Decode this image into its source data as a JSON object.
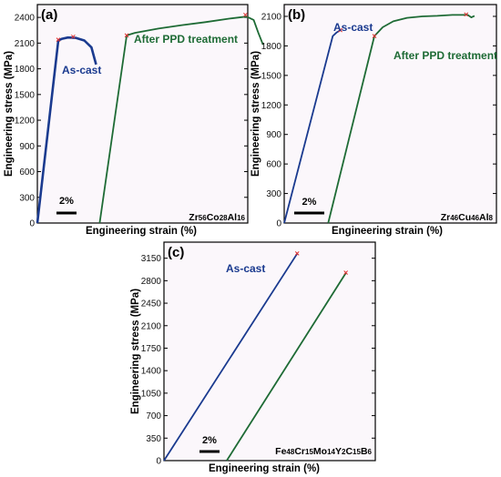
{
  "colors": {
    "blue": "#1a3a8f",
    "green": "#1e6b35",
    "frame": "#000000",
    "plot_bg": "#fbf7fb",
    "marker": "#e03030"
  },
  "chart_data": [
    {
      "panel": "(a)",
      "type": "line",
      "xlabel": "Engineering strain (%)",
      "ylabel": "Engineering stress (MPa)",
      "ylim": [
        0,
        2550
      ],
      "yticks": [
        "0",
        "300",
        "600",
        "900",
        "1200",
        "1500",
        "1800",
        "2100",
        "2400"
      ],
      "ytick_values": [
        0,
        300,
        600,
        900,
        1200,
        1500,
        1800,
        2100,
        2400
      ],
      "x_unit_percent": 2,
      "xlim": [
        0,
        17.9
      ],
      "scalebar_label": "2%",
      "composition": [
        "Zr",
        "56",
        "Co",
        "28",
        "Al",
        "16"
      ],
      "series": [
        {
          "name": "As-cast",
          "color": "#1a3a8f",
          "x": [
            0.0,
            1.78,
            2.1,
            2.6,
            3.3,
            4.0,
            4.6,
            5.0
          ],
          "y": [
            0,
            2130,
            2150,
            2165,
            2160,
            2130,
            2050,
            1850
          ],
          "markers": [
            [
              1.78,
              2140
            ],
            [
              3.05,
              2175
            ]
          ]
        },
        {
          "name": "After PPD treatment",
          "color": "#1e6b35",
          "x": [
            0.0,
            2.3,
            3.0,
            5.0,
            7.0,
            9.0,
            11.0,
            12.5,
            13.1,
            13.5,
            13.9
          ],
          "y": [
            0,
            2190,
            2220,
            2270,
            2310,
            2345,
            2385,
            2410,
            2370,
            2220,
            2080
          ],
          "offset": 5.3,
          "markers": [
            [
              2.3,
              2190
            ],
            [
              12.4,
              2430
            ]
          ]
        }
      ]
    },
    {
      "panel": "(b)",
      "type": "line",
      "xlabel": "Engineering strain (%)",
      "ylabel": "Engineering stress (MPa)",
      "ylim": [
        0,
        2220
      ],
      "yticks": [
        "0",
        "300",
        "600",
        "900",
        "1200",
        "1500",
        "1800",
        "2100"
      ],
      "ytick_values": [
        0,
        300,
        600,
        900,
        1200,
        1500,
        1800,
        2100
      ],
      "x_unit_percent": 2,
      "xlim": [
        0,
        14.0
      ],
      "scalebar_label": "2%",
      "composition": [
        "Zr",
        "46",
        "Cu",
        "46",
        "Al",
        "8"
      ],
      "series": [
        {
          "name": "As-cast",
          "color": "#1a3a8f",
          "x": [
            0.0,
            3.2,
            3.45,
            3.6,
            3.75
          ],
          "y": [
            0,
            1900,
            1935,
            1950,
            1965
          ],
          "markers": [
            [
              3.7,
              1960
            ]
          ]
        },
        {
          "name": "After PPD treatment",
          "color": "#1e6b35",
          "x": [
            0.0,
            3.05,
            3.6,
            4.3,
            5.2,
            6.2,
            7.2,
            8.2,
            9.2,
            9.45,
            9.65
          ],
          "y": [
            0,
            1900,
            1990,
            2050,
            2085,
            2100,
            2105,
            2115,
            2115,
            2090,
            2105
          ],
          "offset": 2.9,
          "markers": [
            [
              3.05,
              1900
            ],
            [
              9.1,
              2120
            ]
          ]
        }
      ]
    },
    {
      "panel": "(c)",
      "type": "line",
      "xlabel": "Engineering strain (%)",
      "ylabel": "Engineering stress (MPa)",
      "ylim": [
        0,
        3400
      ],
      "yticks": [
        "0",
        "350",
        "700",
        "1050",
        "1400",
        "1750",
        "2100",
        "2450",
        "2800",
        "3150"
      ],
      "ytick_values": [
        0,
        350,
        700,
        1050,
        1400,
        1750,
        2100,
        2450,
        2800,
        3150
      ],
      "x_unit_percent": 2,
      "xlim": [
        0,
        16.5
      ],
      "scalebar_label": "2%",
      "composition": [
        "Fe",
        "48",
        "Cr",
        "15",
        "Mo",
        "14",
        "Y",
        "2",
        "C",
        "15",
        "B",
        "6"
      ],
      "series": [
        {
          "name": "As-cast",
          "color": "#1a3a8f",
          "x": [
            0.0,
            10.4
          ],
          "y": [
            0,
            3220
          ],
          "markers": [
            [
              10.4,
              3225
            ]
          ]
        },
        {
          "name": "",
          "color": "#1e6b35",
          "x": [
            0.0,
            9.3
          ],
          "y": [
            0,
            2920
          ],
          "offset": 4.9,
          "markers": [
            [
              9.3,
              2925
            ]
          ]
        }
      ]
    }
  ]
}
